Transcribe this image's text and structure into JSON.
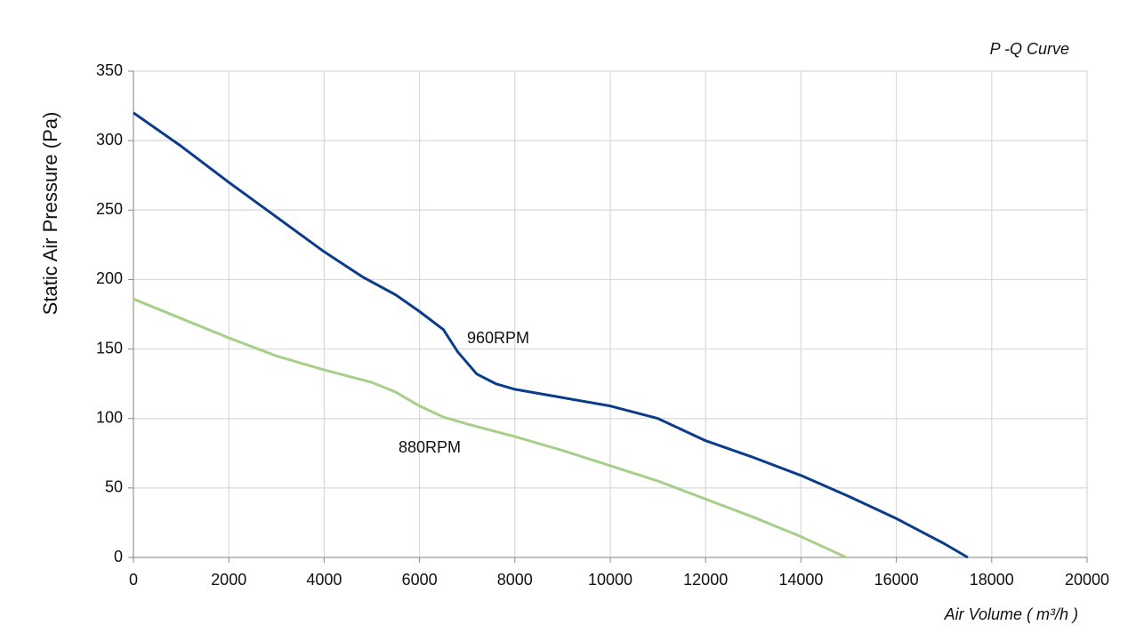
{
  "chart_data": {
    "type": "line",
    "title": "P -Q Curve",
    "x_label": "Air Volume ( m³/h )",
    "y_label": "Static Air Pressure  (Pa)",
    "xlim": [
      0,
      20000
    ],
    "xticks": [
      0,
      2000,
      4000,
      6000,
      8000,
      10000,
      12000,
      14000,
      16000,
      18000,
      20000
    ],
    "ylim": [
      0,
      350
    ],
    "yticks": [
      0,
      50,
      100,
      150,
      200,
      250,
      300,
      350
    ],
    "grid": true,
    "series": [
      {
        "name": "960RPM",
        "color": "#0b3c8c",
        "x": [
          0,
          1000,
          2000,
          3000,
          4000,
          4800,
          5500,
          6000,
          6500,
          6800,
          7200,
          7600,
          8000,
          9000,
          10000,
          11000,
          12000,
          13000,
          14000,
          15000,
          16000,
          17000,
          17500
        ],
        "values": [
          320,
          296,
          270,
          245,
          220,
          202,
          189,
          177,
          164,
          148,
          132,
          125,
          121,
          115,
          109,
          100,
          84,
          72,
          59,
          44,
          28,
          10,
          0
        ]
      },
      {
        "name": "880RPM",
        "color": "#a6d08a",
        "x": [
          0,
          1000,
          2000,
          3000,
          4000,
          5000,
          5500,
          6000,
          6500,
          7000,
          8000,
          9000,
          10000,
          11000,
          12000,
          13000,
          14000,
          14950
        ],
        "values": [
          186,
          172,
          158,
          145,
          135,
          126,
          119,
          109,
          101,
          96,
          87,
          77,
          66,
          55,
          42,
          29,
          15,
          0
        ]
      }
    ]
  }
}
